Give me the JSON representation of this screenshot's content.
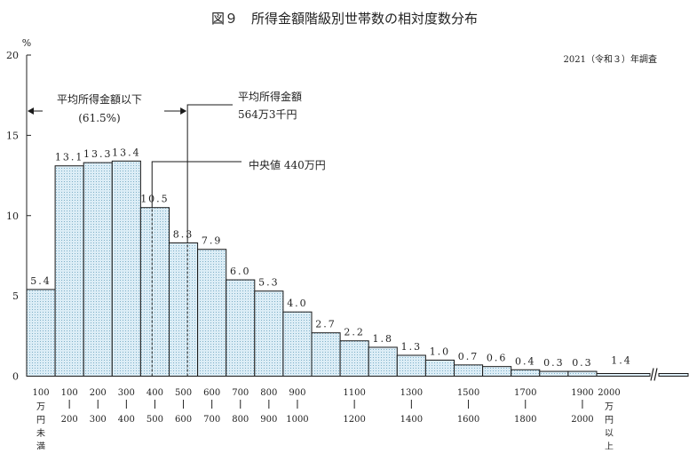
{
  "chart_data": {
    "type": "bar",
    "title": "図９　所得金額階級別世帯数の相対度数分布",
    "survey_note": "2021（令和３）年調査",
    "y_unit": "%",
    "ylim": [
      0,
      20
    ],
    "yticks": [
      0,
      5,
      10,
      15,
      20
    ],
    "grid": false,
    "bar_color": "#dcedf6",
    "categories": [
      {
        "top": "100",
        "bottom": "万円未満",
        "value": 5.4,
        "label": "5.4"
      },
      {
        "top": "100",
        "bottom": "200",
        "value": 13.1,
        "label": "13.1"
      },
      {
        "top": "200",
        "bottom": "300",
        "value": 13.3,
        "label": "13.3"
      },
      {
        "top": "300",
        "bottom": "400",
        "value": 13.4,
        "label": "13.4"
      },
      {
        "top": "400",
        "bottom": "500",
        "value": 10.5,
        "label": "10.5"
      },
      {
        "top": "500",
        "bottom": "600",
        "value": 8.3,
        "label": "8.3"
      },
      {
        "top": "600",
        "bottom": "700",
        "value": 7.9,
        "label": "7.9"
      },
      {
        "top": "700",
        "bottom": "800",
        "value": 6.0,
        "label": "6.0"
      },
      {
        "top": "800",
        "bottom": "900",
        "value": 5.3,
        "label": "5.3"
      },
      {
        "top": "900",
        "bottom": "1000",
        "value": 4.0,
        "label": "4.0"
      },
      {
        "top": "",
        "bottom": "",
        "value": 2.7,
        "label": "2.7"
      },
      {
        "top": "1100",
        "bottom": "1200",
        "value": 2.2,
        "label": "2.2"
      },
      {
        "top": "",
        "bottom": "",
        "value": 1.8,
        "label": "1.8"
      },
      {
        "top": "1300",
        "bottom": "1400",
        "value": 1.3,
        "label": "1.3"
      },
      {
        "top": "",
        "bottom": "",
        "value": 1.0,
        "label": "1.0"
      },
      {
        "top": "1500",
        "bottom": "1600",
        "value": 0.7,
        "label": "0.7"
      },
      {
        "top": "",
        "bottom": "",
        "value": 0.6,
        "label": "0.6"
      },
      {
        "top": "1700",
        "bottom": "1800",
        "value": 0.4,
        "label": "0.4"
      },
      {
        "top": "",
        "bottom": "",
        "value": 0.3,
        "label": "0.3"
      },
      {
        "top": "1900",
        "bottom": "2000",
        "value": 0.3,
        "label": "0.3"
      },
      {
        "top": "2000",
        "bottom": "万円以上",
        "value": 1.4,
        "label": "1.4"
      }
    ],
    "annotations": {
      "below_mean": "平均所得金額以下",
      "below_mean_share": "(61.5%)",
      "mean_label": "平均所得金額",
      "mean_value": "564万3千円",
      "median_label": "中央値 440万円"
    }
  }
}
